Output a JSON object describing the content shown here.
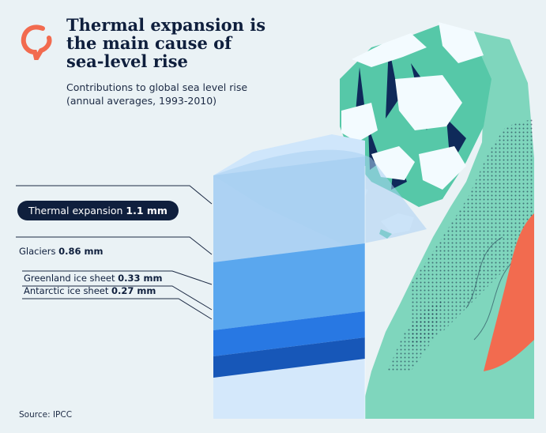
{
  "header": {
    "title": "Thermal expansion is the main cause of sea-level rise",
    "subtitle": "Contributions to global sea level rise (annual averages, 1993-2010)"
  },
  "chart_data": {
    "type": "bar",
    "title": "Thermal expansion is the main cause of sea-level rise",
    "subtitle": "Contributions to global sea level rise (annual averages, 1993-2010)",
    "unit": "mm",
    "categories": [
      "Thermal expansion",
      "Glaciers",
      "Greenland ice sheet",
      "Antarctic ice sheet"
    ],
    "values": [
      1.1,
      0.86,
      0.33,
      0.27
    ],
    "value_labels": [
      "1.1 mm",
      "0.86 mm",
      "0.33 mm",
      "0.27 mm"
    ],
    "highlighted": "Thermal expansion",
    "layer_colors": [
      "#a9cff2",
      "#5aa7ee",
      "#2878e3",
      "#1757b8"
    ]
  },
  "footer": {
    "source": "Source: IPCC"
  },
  "colors": {
    "background": "#eaf2f5",
    "ink": "#0f1f3d",
    "accent": "#f26b4f",
    "ice": "#56c8a8"
  },
  "icons": {
    "logo": "speech-bubble-icon"
  }
}
